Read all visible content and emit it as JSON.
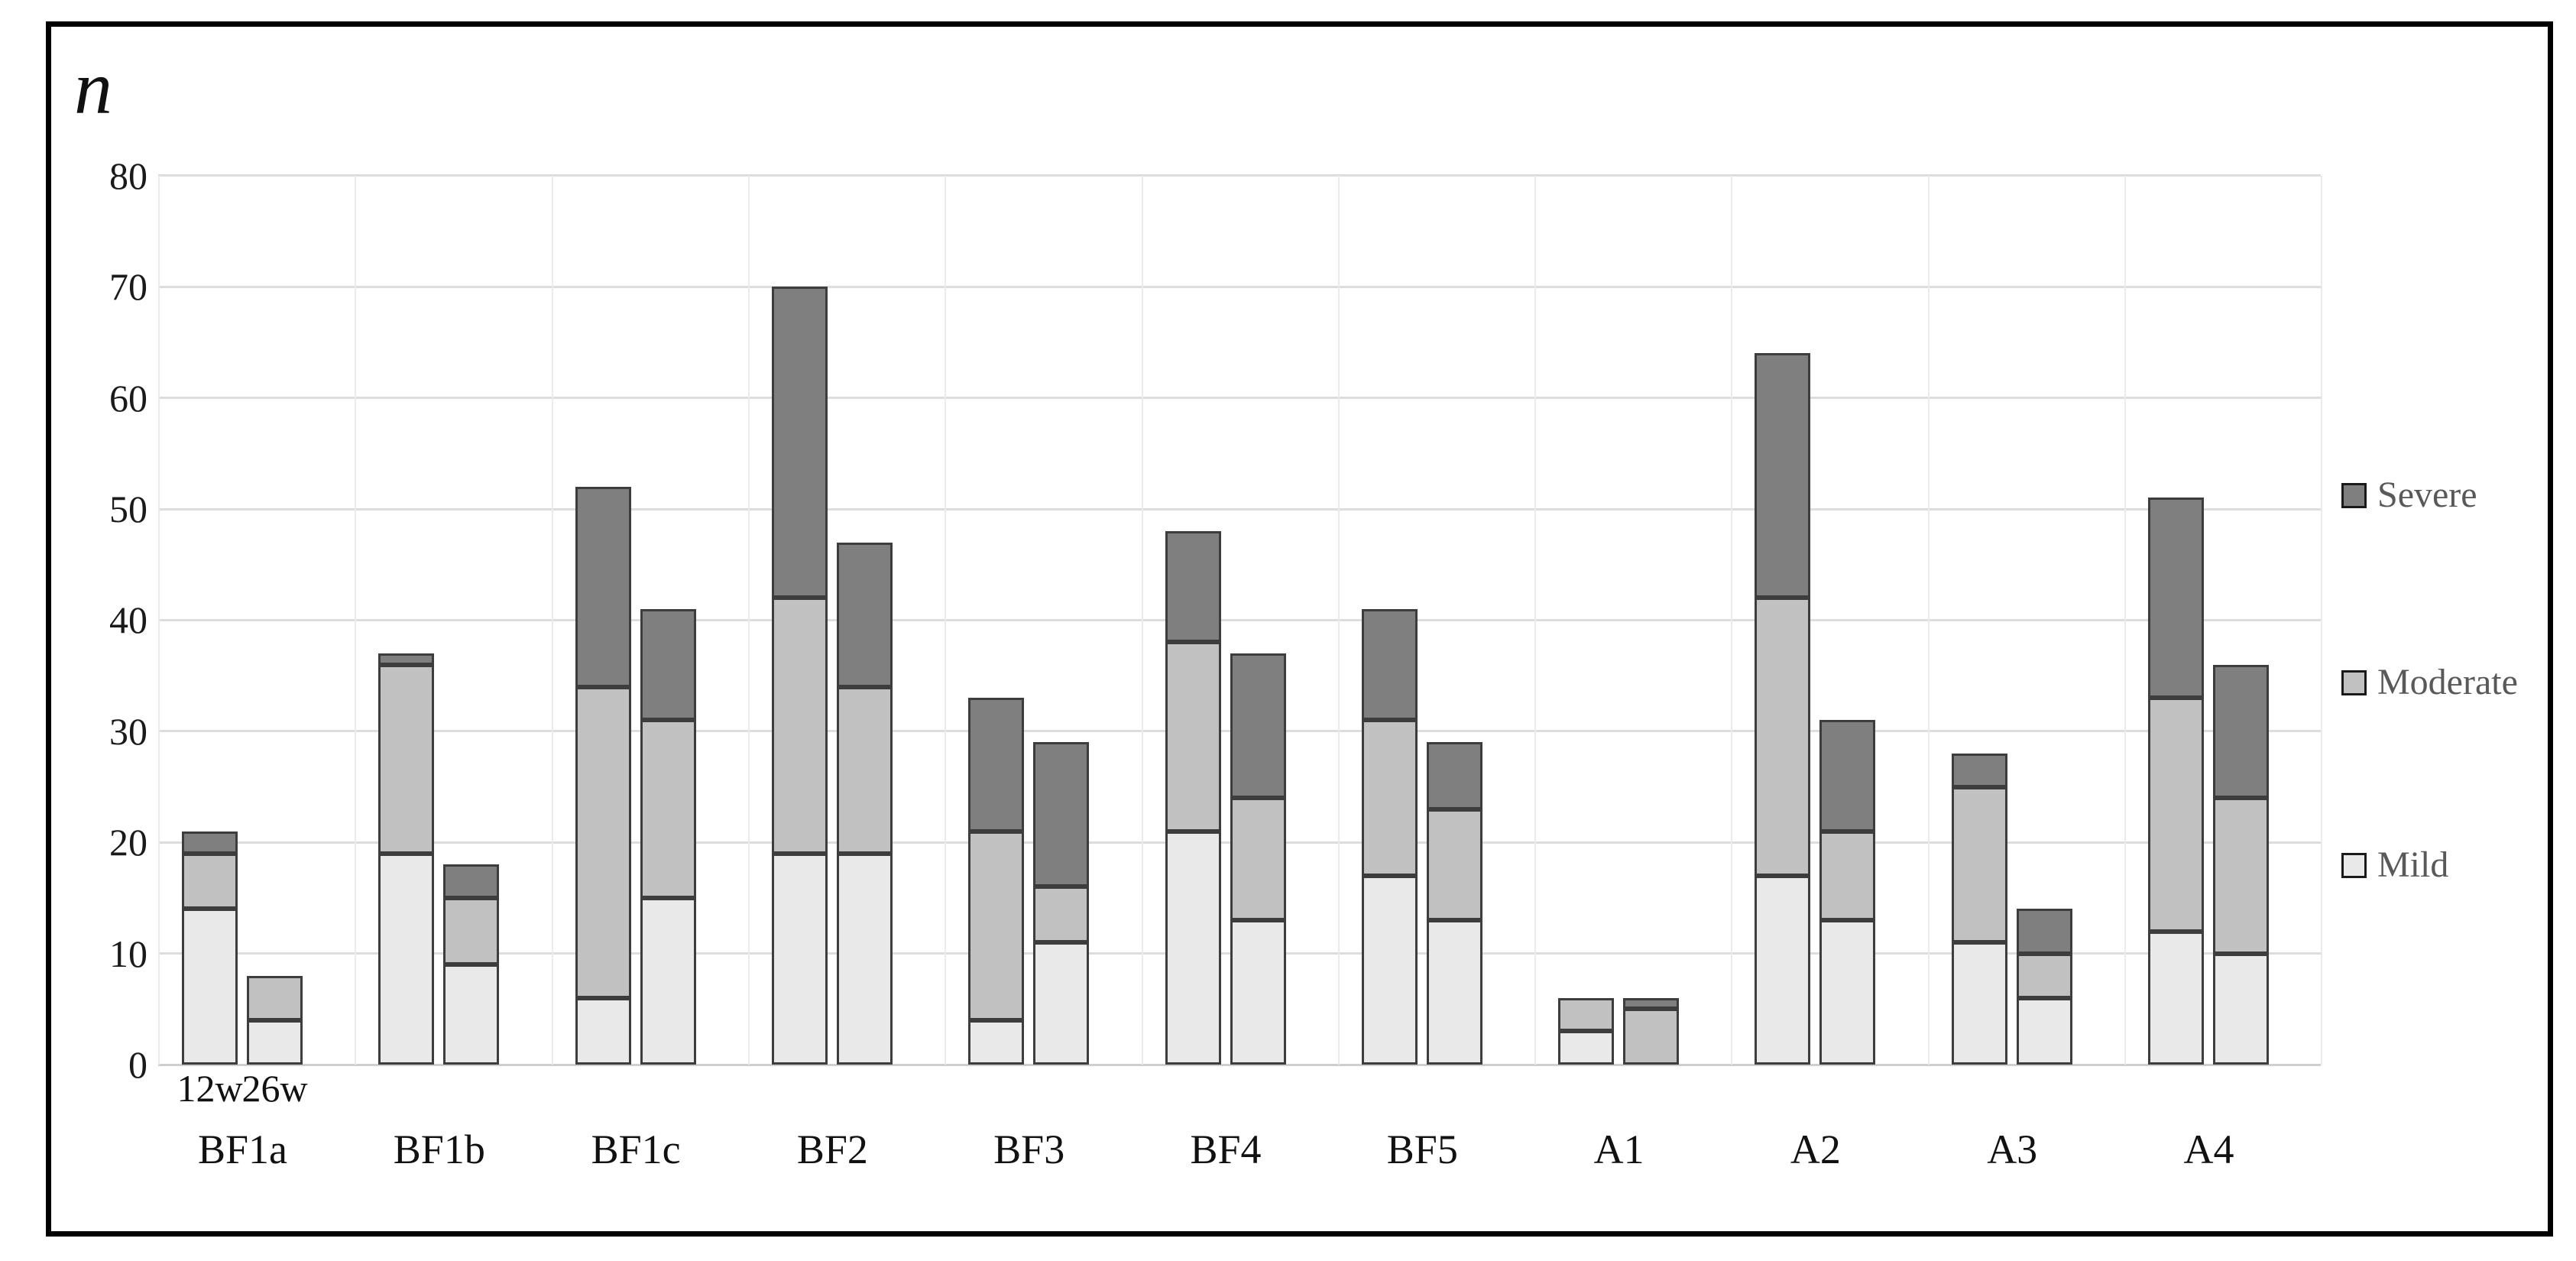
{
  "figure": {
    "ylabel": "n",
    "group_sublabels": [
      "12w",
      "26w"
    ],
    "colors": {
      "mild": "#e9e9e9",
      "moderate": "#c1c1c1",
      "severe": "#7f7f7f",
      "frame_border": "#000000"
    }
  },
  "legend": [
    {
      "label": "Severe",
      "color": "#7f7f7f"
    },
    {
      "label": "Moderate",
      "color": "#c1c1c1"
    },
    {
      "label": "Mild",
      "color": "#e9e9e9"
    }
  ],
  "chart_data": {
    "type": "bar",
    "stacked": true,
    "title": "",
    "xlabel": "",
    "ylabel": "n",
    "ylim": [
      0,
      80
    ],
    "y_ticks": [
      0,
      10,
      20,
      30,
      40,
      50,
      60,
      70,
      80
    ],
    "grid": true,
    "legend_position": "right",
    "categories": [
      "BF1a",
      "BF1b",
      "BF1c",
      "BF2",
      "BF3",
      "BF4",
      "BF5",
      "A1",
      "A2",
      "A3",
      "A4"
    ],
    "bars_per_category": [
      "12w",
      "26w"
    ],
    "series": [
      {
        "name": "Mild",
        "color": "#e9e9e9",
        "values": {
          "12w": [
            14,
            19,
            6,
            19,
            4,
            21,
            17,
            3,
            17,
            11,
            12
          ],
          "26w": [
            4,
            9,
            15,
            19,
            11,
            13,
            13,
            0,
            13,
            6,
            10
          ]
        }
      },
      {
        "name": "Moderate",
        "color": "#c1c1c1",
        "values": {
          "12w": [
            5,
            17,
            28,
            23,
            17,
            17,
            14,
            3,
            25,
            14,
            21
          ],
          "26w": [
            4,
            6,
            16,
            15,
            5,
            11,
            10,
            5,
            8,
            4,
            14
          ]
        }
      },
      {
        "name": "Severe",
        "color": "#7f7f7f",
        "values": {
          "12w": [
            2,
            1,
            18,
            28,
            12,
            10,
            10,
            0,
            22,
            3,
            18
          ],
          "26w": [
            0,
            3,
            10,
            13,
            13,
            13,
            6,
            1,
            10,
            4,
            12
          ]
        }
      }
    ],
    "totals": {
      "12w": [
        21,
        37,
        52,
        70,
        33,
        48,
        41,
        6,
        64,
        28,
        51
      ],
      "26w": [
        8,
        18,
        41,
        47,
        29,
        37,
        29,
        6,
        31,
        14,
        36
      ]
    }
  }
}
